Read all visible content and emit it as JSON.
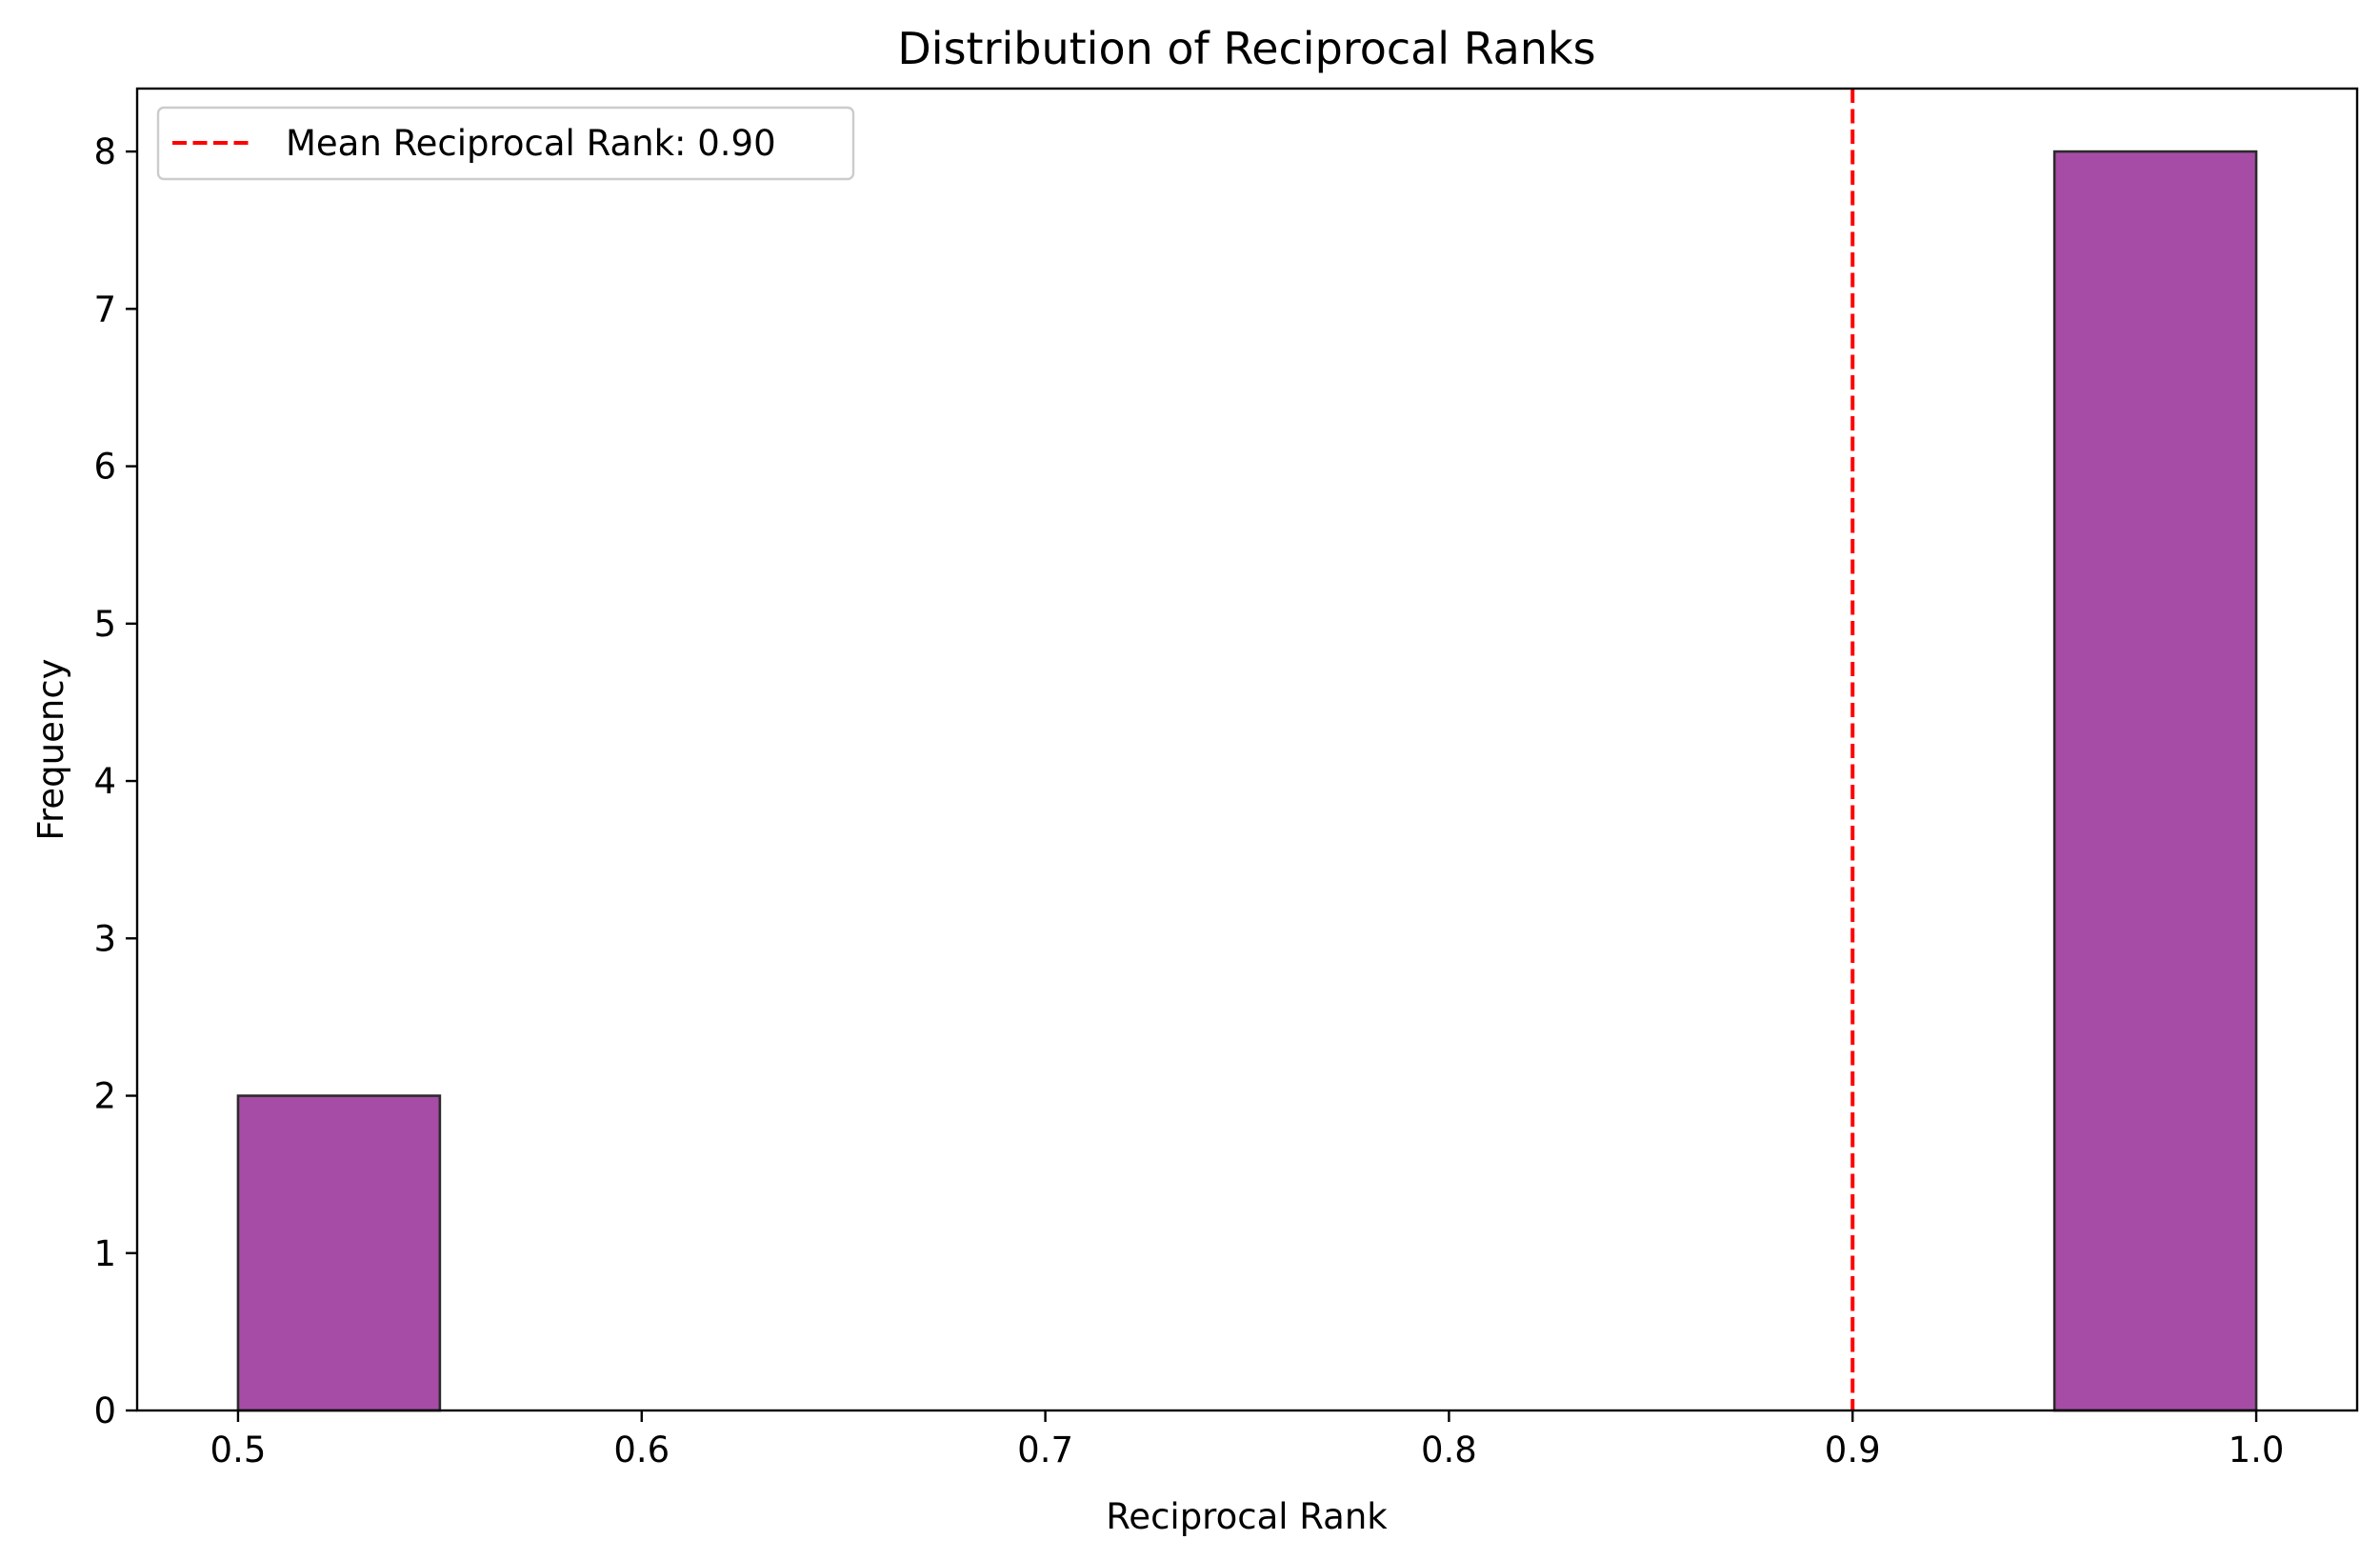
{
  "chart_data": {
    "type": "bar",
    "title": "Distribution of Reciprocal Ranks",
    "xlabel": "Reciprocal Rank",
    "ylabel": "Frequency",
    "xlim": [
      0.475,
      1.025
    ],
    "ylim": [
      0,
      8.4
    ],
    "xticks": [
      "0.5",
      "0.6",
      "0.7",
      "0.8",
      "0.9",
      "1.0"
    ],
    "yticks": [
      "0",
      "1",
      "2",
      "3",
      "4",
      "5",
      "6",
      "7",
      "8"
    ],
    "bins": [
      {
        "start": 0.5,
        "end": 0.55,
        "count": 2
      },
      {
        "start": 0.55,
        "end": 0.6,
        "count": 0
      },
      {
        "start": 0.6,
        "end": 0.65,
        "count": 0
      },
      {
        "start": 0.65,
        "end": 0.7,
        "count": 0
      },
      {
        "start": 0.7,
        "end": 0.75,
        "count": 0
      },
      {
        "start": 0.75,
        "end": 0.8,
        "count": 0
      },
      {
        "start": 0.8,
        "end": 0.85,
        "count": 0
      },
      {
        "start": 0.85,
        "end": 0.9,
        "count": 0
      },
      {
        "start": 0.9,
        "end": 0.95,
        "count": 0
      },
      {
        "start": 0.95,
        "end": 1.0,
        "count": 8
      }
    ],
    "bar_color": "#a64ca6",
    "bar_edge_color": "#2b2b2b",
    "mean_line": {
      "value": 0.9,
      "color": "#ff0000",
      "label": "Mean Reciprocal Rank: 0.90"
    },
    "legend_position": "top-left",
    "grid": false
  }
}
